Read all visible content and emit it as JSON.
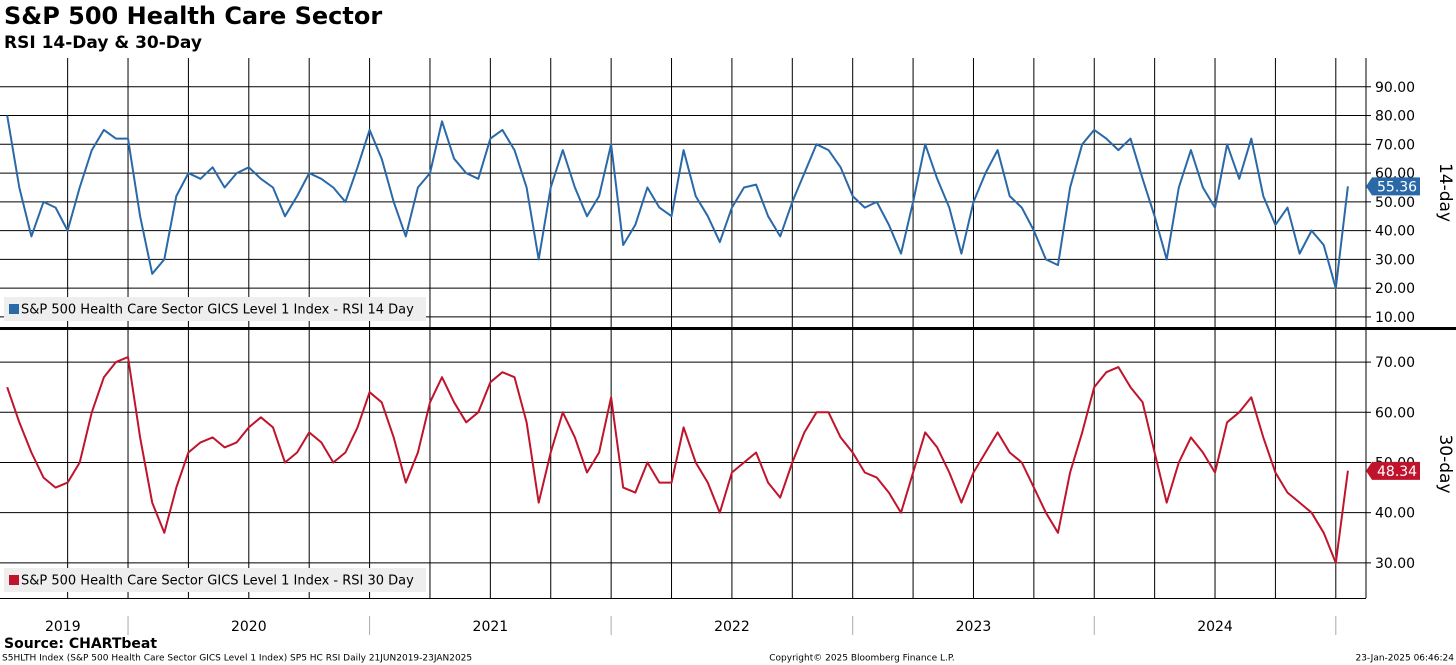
{
  "title": "S&P 500 Health Care Sector",
  "subtitle": "RSI 14-Day & 30-Day",
  "source": "Source: CHARTbeat",
  "footer": {
    "left": "S5HLTH Index (S&P 500 Health Care Sector GICS Level 1 Index) SP5 HC RSI  Daily 21JUN2019-23JAN2025",
    "center": "Copyright© 2025 Bloomberg Finance L.P.",
    "right": "23-Jan-2025 06:46:24"
  },
  "chart_data": [
    {
      "type": "line",
      "axis_label": "14-day",
      "last_value_label": "55.36",
      "xlim": [
        2019.47,
        2025.125
      ],
      "ylim": [
        6.5,
        100
      ],
      "xgrid": [
        2019.75,
        2020,
        2020.25,
        2020.5,
        2020.75,
        2021,
        2021.25,
        2021.5,
        2021.75,
        2022,
        2022.25,
        2022.5,
        2022.75,
        2023,
        2023.25,
        2023.5,
        2023.75,
        2024,
        2024.25,
        2024.5,
        2024.75,
        2025
      ],
      "yticks": [
        {
          "value": 10,
          "label": "10.00"
        },
        {
          "value": 20,
          "label": "20.00"
        },
        {
          "value": 30,
          "label": "30.00"
        },
        {
          "value": 40,
          "label": "40.00"
        },
        {
          "value": 50,
          "label": "50.00"
        },
        {
          "value": 60,
          "label": "60.00"
        },
        {
          "value": 70,
          "label": "70.00"
        },
        {
          "value": 80,
          "label": "80.00"
        },
        {
          "value": 90,
          "label": "90.00"
        }
      ],
      "x": [
        2019.5,
        2019.55,
        2019.6,
        2019.65,
        2019.7,
        2019.75,
        2019.8,
        2019.85,
        2019.9,
        2019.95,
        2020,
        2020.05,
        2020.1,
        2020.15,
        2020.2,
        2020.25,
        2020.3,
        2020.35,
        2020.4,
        2020.45,
        2020.5,
        2020.55,
        2020.6,
        2020.65,
        2020.7,
        2020.75,
        2020.8,
        2020.85,
        2020.9,
        2020.95,
        2021,
        2021.05,
        2021.1,
        2021.15,
        2021.2,
        2021.25,
        2021.3,
        2021.35,
        2021.4,
        2021.45,
        2021.5,
        2021.55,
        2021.6,
        2021.65,
        2021.7,
        2021.75,
        2021.8,
        2021.85,
        2021.9,
        2021.95,
        2022,
        2022.05,
        2022.1,
        2022.15,
        2022.2,
        2022.25,
        2022.3,
        2022.35,
        2022.4,
        2022.45,
        2022.5,
        2022.55,
        2022.6,
        2022.65,
        2022.7,
        2022.75,
        2022.8,
        2022.85,
        2022.9,
        2022.95,
        2023,
        2023.05,
        2023.1,
        2023.15,
        2023.2,
        2023.25,
        2023.3,
        2023.35,
        2023.4,
        2023.45,
        2023.5,
        2023.55,
        2023.6,
        2023.65,
        2023.7,
        2023.75,
        2023.8,
        2023.85,
        2023.9,
        2023.95,
        2024,
        2024.05,
        2024.1,
        2024.15,
        2024.2,
        2024.25,
        2024.3,
        2024.35,
        2024.4,
        2024.45,
        2024.5,
        2024.55,
        2024.6,
        2024.65,
        2024.7,
        2024.75,
        2024.8,
        2024.85,
        2024.9,
        2024.95,
        2025,
        2025.05
      ],
      "series": [
        {
          "name": "S&P 500 Health Care Sector GICS Level 1 Index - RSI 14 Day",
          "color": "#2a69a8",
          "values": [
            80,
            55,
            38,
            50,
            48,
            40,
            55,
            68,
            75,
            72,
            72,
            45,
            25,
            30,
            52,
            60,
            58,
            62,
            55,
            60,
            62,
            58,
            55,
            45,
            52,
            60,
            58,
            55,
            50,
            62,
            75,
            65,
            50,
            38,
            55,
            60,
            78,
            65,
            60,
            58,
            72,
            75,
            68,
            55,
            30,
            55,
            68,
            55,
            45,
            52,
            70,
            35,
            42,
            55,
            48,
            45,
            68,
            52,
            45,
            36,
            48,
            55,
            56,
            45,
            38,
            50,
            60,
            70,
            68,
            62,
            52,
            48,
            50,
            42,
            32,
            50,
            70,
            58,
            48,
            32,
            50,
            60,
            68,
            52,
            48,
            40,
            30,
            28,
            55,
            70,
            75,
            72,
            68,
            72,
            58,
            45,
            30,
            55,
            68,
            55,
            48,
            70,
            58,
            72,
            52,
            42,
            48,
            32,
            40,
            35,
            20,
            55.36
          ]
        }
      ]
    },
    {
      "type": "line",
      "axis_label": "30-day",
      "last_value_label": "48.34",
      "xlim": [
        2019.47,
        2025.125
      ],
      "ylim": [
        23,
        76.4
      ],
      "xgrid": [
        2019.75,
        2020,
        2020.25,
        2020.5,
        2020.75,
        2021,
        2021.25,
        2021.5,
        2021.75,
        2022,
        2022.25,
        2022.5,
        2022.75,
        2023,
        2023.25,
        2023.5,
        2023.75,
        2024,
        2024.25,
        2024.5,
        2024.75,
        2025
      ],
      "yticks": [
        {
          "value": 30,
          "label": "30.00"
        },
        {
          "value": 40,
          "label": "40.00"
        },
        {
          "value": 50,
          "label": "50.00"
        },
        {
          "value": 60,
          "label": "60.00"
        },
        {
          "value": 70,
          "label": "70.00"
        }
      ],
      "xticks": [
        {
          "value": 2019.73,
          "label": "2019"
        },
        {
          "value": 2020.5,
          "label": "2020"
        },
        {
          "value": 2021.5,
          "label": "2021"
        },
        {
          "value": 2022.5,
          "label": "2022"
        },
        {
          "value": 2023.5,
          "label": "2023"
        },
        {
          "value": 2024.5,
          "label": "2024"
        }
      ],
      "year_bounds": [
        2020,
        2021,
        2022,
        2023,
        2024,
        2025
      ],
      "x": [
        2019.5,
        2019.55,
        2019.6,
        2019.65,
        2019.7,
        2019.75,
        2019.8,
        2019.85,
        2019.9,
        2019.95,
        2020,
        2020.05,
        2020.1,
        2020.15,
        2020.2,
        2020.25,
        2020.3,
        2020.35,
        2020.4,
        2020.45,
        2020.5,
        2020.55,
        2020.6,
        2020.65,
        2020.7,
        2020.75,
        2020.8,
        2020.85,
        2020.9,
        2020.95,
        2021,
        2021.05,
        2021.1,
        2021.15,
        2021.2,
        2021.25,
        2021.3,
        2021.35,
        2021.4,
        2021.45,
        2021.5,
        2021.55,
        2021.6,
        2021.65,
        2021.7,
        2021.75,
        2021.8,
        2021.85,
        2021.9,
        2021.95,
        2022,
        2022.05,
        2022.1,
        2022.15,
        2022.2,
        2022.25,
        2022.3,
        2022.35,
        2022.4,
        2022.45,
        2022.5,
        2022.55,
        2022.6,
        2022.65,
        2022.7,
        2022.75,
        2022.8,
        2022.85,
        2022.9,
        2022.95,
        2023,
        2023.05,
        2023.1,
        2023.15,
        2023.2,
        2023.25,
        2023.3,
        2023.35,
        2023.4,
        2023.45,
        2023.5,
        2023.55,
        2023.6,
        2023.65,
        2023.7,
        2023.75,
        2023.8,
        2023.85,
        2023.9,
        2023.95,
        2024,
        2024.05,
        2024.1,
        2024.15,
        2024.2,
        2024.25,
        2024.3,
        2024.35,
        2024.4,
        2024.45,
        2024.5,
        2024.55,
        2024.6,
        2024.65,
        2024.7,
        2024.75,
        2024.8,
        2024.85,
        2024.9,
        2024.95,
        2025,
        2025.05
      ],
      "series": [
        {
          "name": "S&P 500 Health Care Sector GICS Level 1 Index - RSI 30 Day",
          "color": "#c0142c",
          "values": [
            65,
            58,
            52,
            47,
            45,
            46,
            50,
            60,
            67,
            70,
            71,
            55,
            42,
            36,
            45,
            52,
            54,
            55,
            53,
            54,
            57,
            59,
            57,
            50,
            52,
            56,
            54,
            50,
            52,
            57,
            64,
            62,
            55,
            46,
            52,
            62,
            67,
            62,
            58,
            60,
            66,
            68,
            67,
            58,
            42,
            52,
            60,
            55,
            48,
            52,
            63,
            45,
            44,
            50,
            46,
            46,
            57,
            50,
            46,
            40,
            48,
            50,
            52,
            46,
            43,
            50,
            56,
            60,
            60,
            55,
            52,
            48,
            47,
            44,
            40,
            48,
            56,
            53,
            48,
            42,
            48,
            52,
            56,
            52,
            50,
            45,
            40,
            36,
            48,
            56,
            65,
            68,
            69,
            65,
            62,
            52,
            42,
            50,
            55,
            52,
            48,
            58,
            60,
            63,
            55,
            48,
            44,
            42,
            40,
            36,
            30,
            48.34
          ]
        }
      ]
    }
  ]
}
